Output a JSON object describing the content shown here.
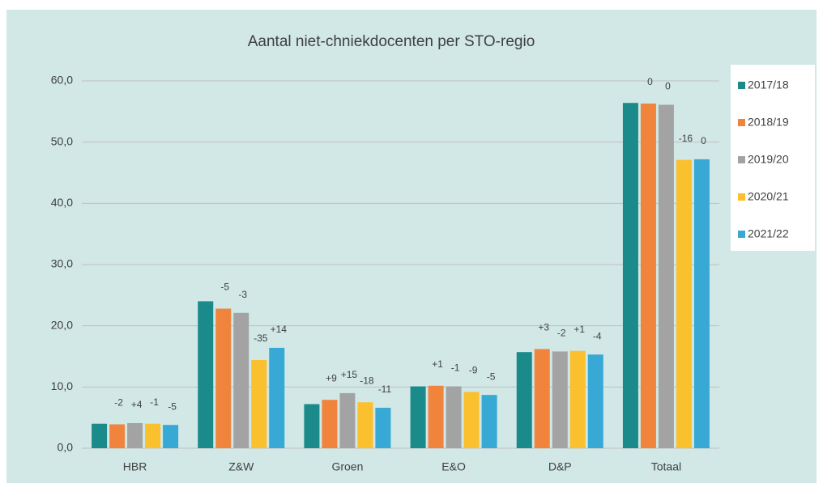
{
  "chart_data": {
    "type": "bar",
    "title": "Aantal niet-chniekdocenten per STO-regio",
    "categories": [
      "HBR",
      "Z&W",
      "Groen",
      "E&O",
      "D&P",
      "Totaal"
    ],
    "series": [
      {
        "name": "2017/18",
        "color": "#1b8a8a",
        "values": [
          4.0,
          24.0,
          7.2,
          10.1,
          15.7,
          56.4
        ]
      },
      {
        "name": "2018/19",
        "color": "#f0843c",
        "values": [
          3.9,
          22.8,
          7.9,
          10.2,
          16.2,
          56.3
        ],
        "change_labels": [
          "-2",
          "-5",
          "+9",
          "+1",
          "+3",
          "0"
        ]
      },
      {
        "name": "2019/20",
        "color": "#a3a3a3",
        "values": [
          4.1,
          22.1,
          9.0,
          10.1,
          15.8,
          56.1
        ],
        "change_labels": [
          "+4",
          "-3",
          "+15",
          "-1",
          "-2",
          "0"
        ]
      },
      {
        "name": "2020/21",
        "color": "#fbc02d",
        "values": [
          4.0,
          14.4,
          7.5,
          9.2,
          15.9,
          47.1
        ],
        "change_labels": [
          "-1",
          "-35",
          "-18",
          "-9",
          "+1",
          "-16"
        ]
      },
      {
        "name": "2021/22",
        "color": "#38a8d4",
        "values": [
          3.8,
          16.4,
          6.6,
          8.7,
          15.3,
          47.2
        ],
        "change_labels": [
          "-5",
          "+14",
          "-11",
          "-5",
          "-4",
          "0"
        ]
      }
    ],
    "ylim": [
      0,
      60
    ],
    "yticks": [
      {
        "value": 0,
        "label": "0,0"
      },
      {
        "value": 10,
        "label": "10,0"
      },
      {
        "value": 20,
        "label": "20,0"
      },
      {
        "value": 30,
        "label": "30,0"
      },
      {
        "value": 40,
        "label": "40,0"
      },
      {
        "value": 50,
        "label": "50,0"
      },
      {
        "value": 60,
        "label": "60,0"
      }
    ],
    "grid": true,
    "legend": "right"
  }
}
